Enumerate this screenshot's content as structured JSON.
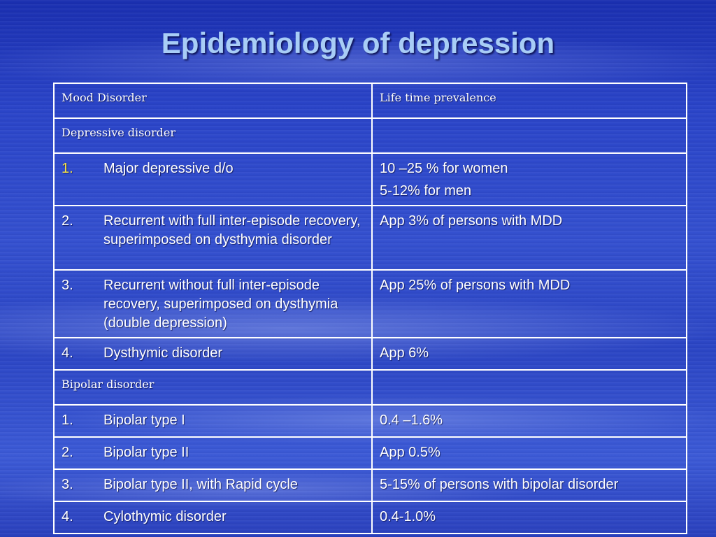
{
  "title": "Epidemiology of depression",
  "table": {
    "headers": [
      "Mood Disorder",
      "Life time prevalence"
    ],
    "sections": [
      {
        "heading": "Depressive disorder",
        "rows": [
          {
            "num": "1.",
            "disorder": "Major depressive d/o",
            "prevalence": [
              "10 –25 % for women",
              "5-12% for men"
            ]
          },
          {
            "num": "2.",
            "disorder": "Recurrent with full inter-episode recovery, superimposed on dysthymia disorder",
            "prevalence": [
              "App 3% of persons with MDD"
            ]
          },
          {
            "num": "3.",
            "disorder": "Recurrent without full inter-episode recovery, superimposed on dysthymia (double depression)",
            "prevalence": [
              "App 25% of persons with MDD"
            ]
          },
          {
            "num": "4.",
            "disorder": "Dysthymic disorder",
            "prevalence": [
              "App 6%"
            ]
          }
        ]
      },
      {
        "heading": "Bipolar disorder",
        "rows": [
          {
            "num": "1.",
            "disorder": "Bipolar type I",
            "prevalence": [
              "0.4 –1.6%"
            ]
          },
          {
            "num": "2.",
            "disorder": "Bipolar type II",
            "prevalence": [
              "App 0.5%"
            ]
          },
          {
            "num": "3.",
            "disorder": "Bipolar type II, with Rapid cycle",
            "prevalence": [
              "5-15% of persons with bipolar disorder"
            ]
          },
          {
            "num": "4.",
            "disorder": "Cylothymic disorder",
            "prevalence": [
              "0.4-1.0%"
            ]
          }
        ]
      }
    ]
  },
  "colors": {
    "title": "#a8cdf6",
    "highlight_number": "#f5e24a",
    "text": "#ffffff"
  }
}
